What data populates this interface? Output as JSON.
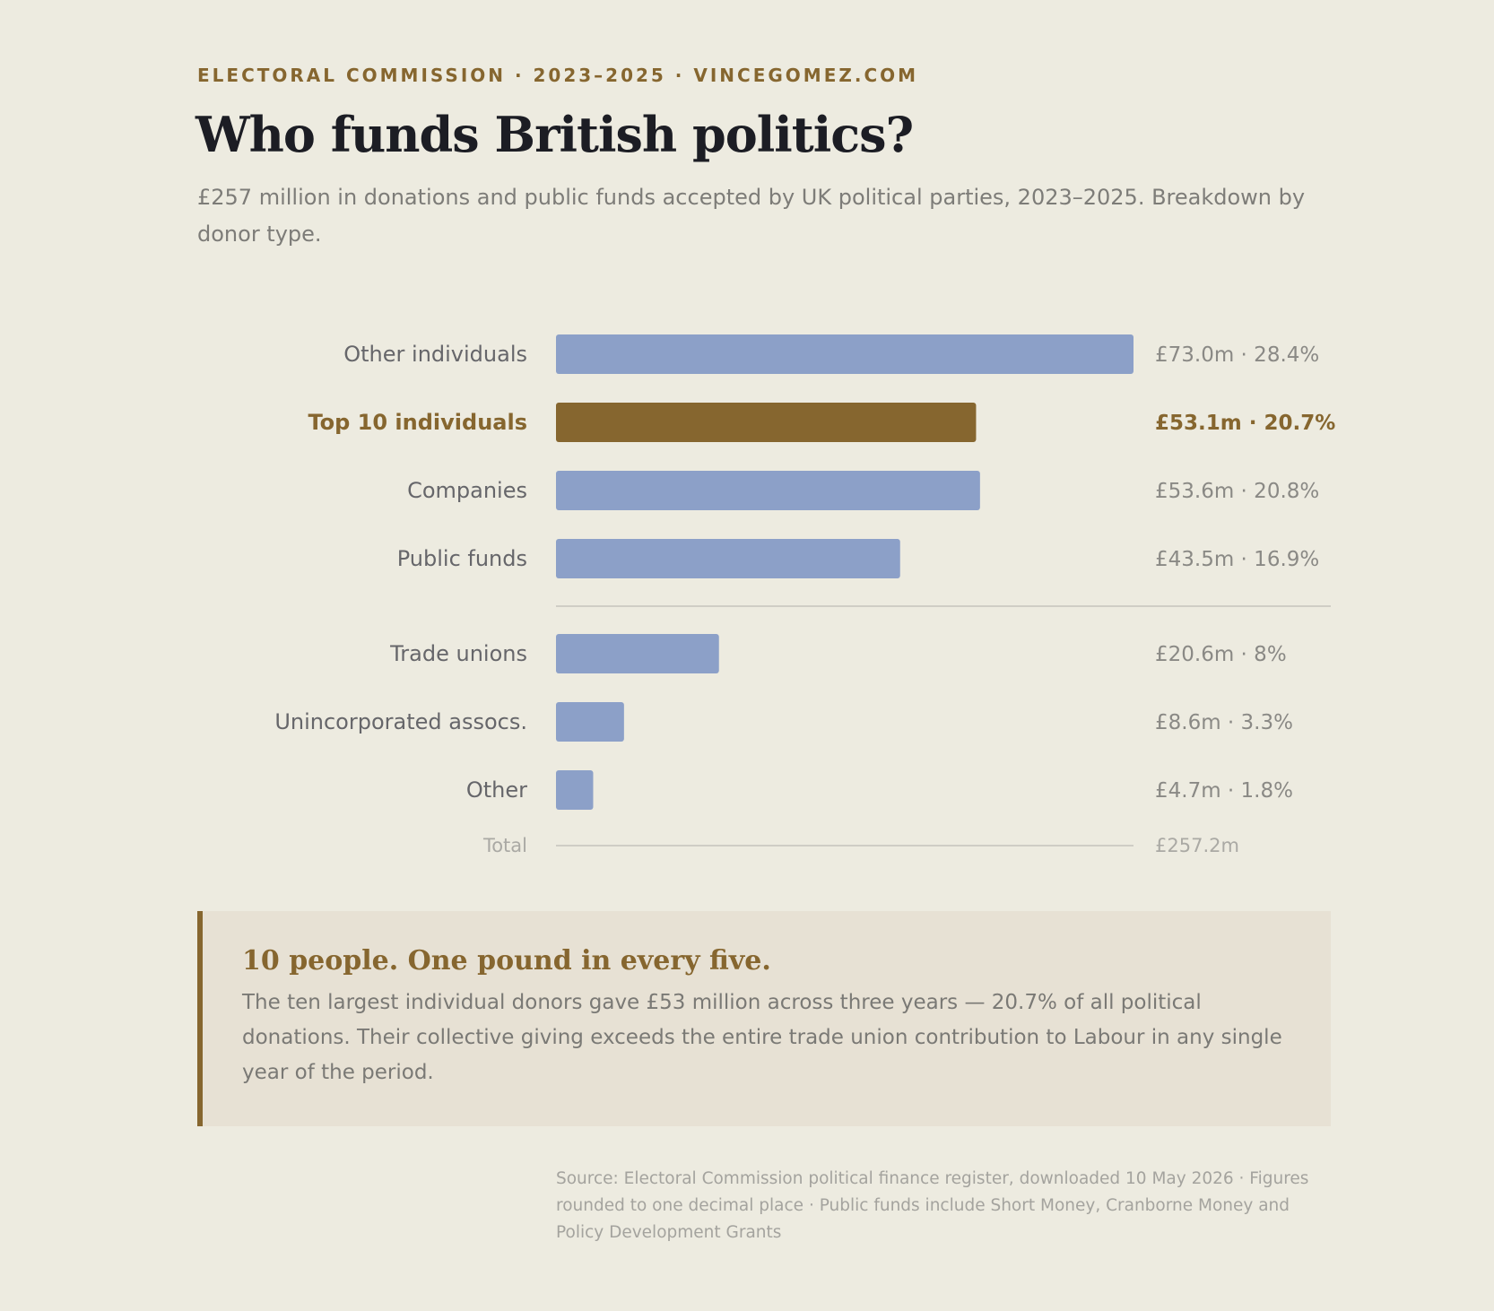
{
  "eyebrow": "ELECTORAL COMMISSION · 2023–2025 · VINCEGOMEZ.COM",
  "title": "Who funds British politics?",
  "subtitle": "£257 million in donations and public funds accepted by UK political parties, 2023–2025. Breakdown by donor type.",
  "colors": {
    "bar": "#8ca0c8",
    "highlight": "#86662f",
    "label": "#66666a",
    "value": "#8a8985",
    "muted": "#aaa9a4",
    "rule": "#cfcdc5"
  },
  "chart_data": {
    "type": "bar",
    "orientation": "horizontal",
    "categories": [
      "Other individuals",
      "Top 10 individuals",
      "Companies",
      "Public funds",
      "Trade unions",
      "Unincorporated assocs.",
      "Other"
    ],
    "values": [
      73.0,
      53.1,
      53.6,
      43.5,
      20.6,
      8.6,
      4.7
    ],
    "value_labels": [
      "£73.0m · 28.4%",
      "£53.1m · 20.7%",
      "£53.6m · 20.8%",
      "£43.5m · 16.9%",
      "£20.6m · 8%",
      "£8.6m · 3.3%",
      "£4.7m · 1.8%"
    ],
    "highlight": "Top 10 individuals",
    "units": "£m",
    "xlim": [
      0,
      73.0
    ],
    "divider_after": "Public funds",
    "total_label": "Total",
    "total_value": "£257.2m",
    "grid": false
  },
  "callout": {
    "title": "10 people. One pound in every five.",
    "body": "The ten largest individual donors gave £53 million across three years — 20.7% of all political donations. Their collective giving exceeds the entire trade union contribution to Labour in any single year of the period."
  },
  "source": "Source: Electoral Commission political finance register, downloaded 10 May 2026 · Figures rounded to one decimal place · Public funds include Short Money, Cranborne Money and Policy Development Grants"
}
